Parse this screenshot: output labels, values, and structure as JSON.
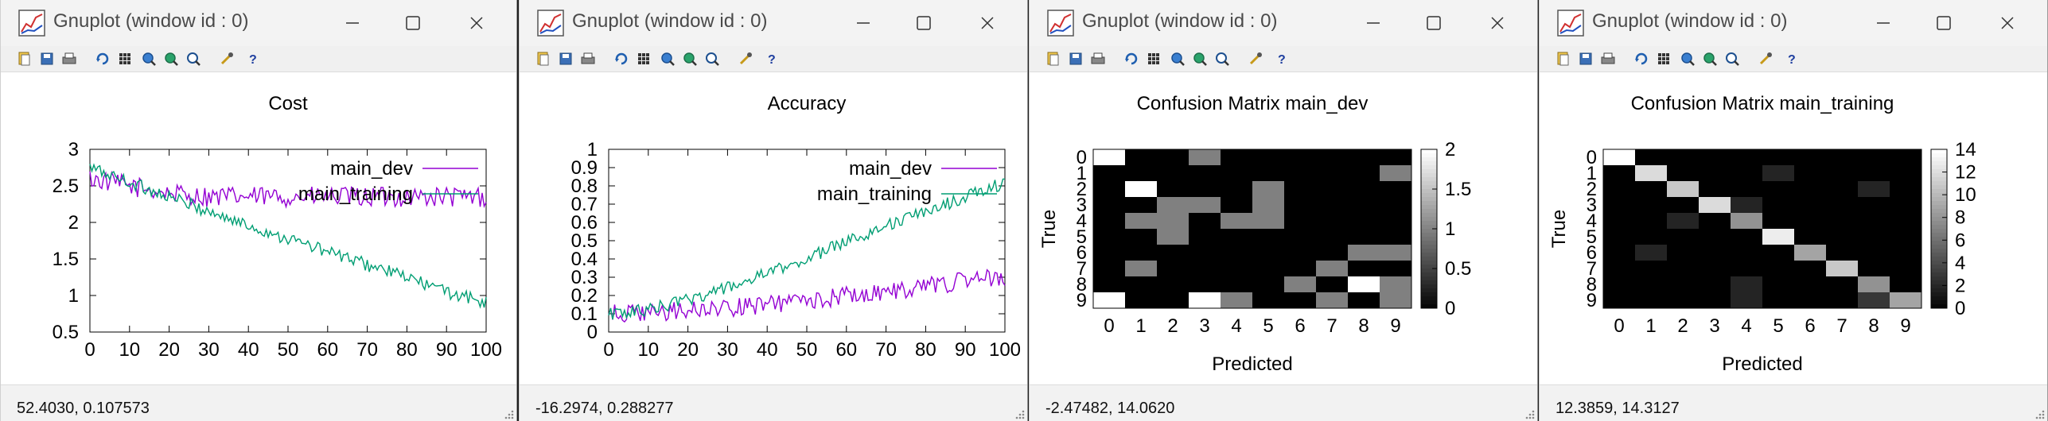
{
  "windows": [
    {
      "title": "Gnuplot (window id : 0)",
      "status": "52.4030,  0.107573"
    },
    {
      "title": "Gnuplot (window id : 0)",
      "status": "-16.2974,  0.288277"
    },
    {
      "title": "Gnuplot (window id : 0)",
      "status": "-2.47482,  14.0620"
    },
    {
      "title": "Gnuplot (window id : 0)",
      "status": "12.3859,  14.3127"
    }
  ],
  "toolbar_icons": [
    "copy-icon",
    "save-icon",
    "print-icon",
    "replot-icon",
    "grid-icon",
    "zoom-prev-icon",
    "zoom-next-icon",
    "autoscale-icon",
    "options-icon",
    "help-icon"
  ],
  "colors": {
    "main_dev": "#9400d3",
    "main_training": "#009e73",
    "titlebar": "#f3f3f3"
  },
  "chart_data": [
    {
      "type": "line",
      "title": "Cost",
      "xlabel": "",
      "ylabel": "",
      "xlim": [
        0,
        100
      ],
      "ylim": [
        0.5,
        3
      ],
      "xticks": [
        "0",
        "10",
        "20",
        "30",
        "40",
        "50",
        "60",
        "70",
        "80",
        "90",
        "100"
      ],
      "yticks": [
        "0.5",
        "1",
        "1.5",
        "2",
        "2.5",
        "3"
      ],
      "legend_position": "top-right",
      "series": [
        {
          "name": "main_dev",
          "x": [
            0,
            10,
            20,
            30,
            40,
            50,
            60,
            70,
            80,
            90,
            100
          ],
          "values": [
            2.6,
            2.5,
            2.4,
            2.35,
            2.35,
            2.35,
            2.35,
            2.35,
            2.35,
            2.35,
            2.35
          ]
        },
        {
          "name": "main_training",
          "x": [
            0,
            10,
            20,
            30,
            40,
            50,
            60,
            70,
            80,
            90,
            100
          ],
          "values": [
            2.75,
            2.55,
            2.35,
            2.15,
            1.95,
            1.78,
            1.6,
            1.42,
            1.25,
            1.05,
            0.9
          ]
        }
      ]
    },
    {
      "type": "line",
      "title": "Accuracy",
      "xlabel": "",
      "ylabel": "",
      "xlim": [
        0,
        100
      ],
      "ylim": [
        0,
        1
      ],
      "xticks": [
        "0",
        "10",
        "20",
        "30",
        "40",
        "50",
        "60",
        "70",
        "80",
        "90",
        "100"
      ],
      "yticks": [
        "0",
        "0.1",
        "0.2",
        "0.3",
        "0.4",
        "0.5",
        "0.6",
        "0.7",
        "0.8",
        "0.9",
        "1"
      ],
      "legend_position": "top-right",
      "series": [
        {
          "name": "main_dev",
          "x": [
            0,
            10,
            20,
            30,
            40,
            50,
            60,
            70,
            80,
            90,
            100
          ],
          "values": [
            0.1,
            0.1,
            0.12,
            0.13,
            0.15,
            0.17,
            0.2,
            0.22,
            0.25,
            0.28,
            0.3
          ]
        },
        {
          "name": "main_training",
          "x": [
            0,
            10,
            20,
            30,
            40,
            50,
            60,
            70,
            80,
            90,
            100
          ],
          "values": [
            0.1,
            0.12,
            0.18,
            0.24,
            0.32,
            0.4,
            0.5,
            0.58,
            0.66,
            0.74,
            0.82
          ]
        }
      ]
    },
    {
      "type": "heatmap",
      "title": "Confusion Matrix main_dev",
      "xlabel": "Predicted",
      "ylabel": "True",
      "x_labels": [
        "0",
        "1",
        "2",
        "3",
        "4",
        "5",
        "6",
        "7",
        "8",
        "9"
      ],
      "y_labels": [
        "0",
        "1",
        "2",
        "3",
        "4",
        "5",
        "6",
        "7",
        "8",
        "9"
      ],
      "colorbar_ticks": [
        "0",
        "0.5",
        "1",
        "1.5",
        "2"
      ],
      "zlim": [
        0,
        2
      ],
      "matrix": [
        [
          2,
          0,
          0,
          1,
          0,
          0,
          0,
          0,
          0,
          0
        ],
        [
          0,
          0,
          0,
          0,
          0,
          0,
          0,
          0,
          0,
          1
        ],
        [
          0,
          2,
          0,
          0,
          0,
          1,
          0,
          0,
          0,
          0
        ],
        [
          0,
          0,
          1,
          1,
          0,
          1,
          0,
          0,
          0,
          0
        ],
        [
          0,
          1,
          1,
          0,
          1,
          1,
          0,
          0,
          0,
          0
        ],
        [
          0,
          0,
          1,
          0,
          0,
          0,
          0,
          0,
          0,
          0
        ],
        [
          0,
          0,
          0,
          0,
          0,
          0,
          0,
          0,
          1,
          1
        ],
        [
          0,
          1,
          0,
          0,
          0,
          0,
          0,
          1,
          0,
          0
        ],
        [
          0,
          0,
          0,
          0,
          0,
          0,
          1,
          0,
          2,
          1
        ],
        [
          2,
          0,
          0,
          2,
          1,
          0,
          0,
          1,
          0,
          1
        ]
      ]
    },
    {
      "type": "heatmap",
      "title": "Confusion Matrix main_training",
      "xlabel": "Predicted",
      "ylabel": "True",
      "x_labels": [
        "0",
        "1",
        "2",
        "3",
        "4",
        "5",
        "6",
        "7",
        "8",
        "9"
      ],
      "y_labels": [
        "0",
        "1",
        "2",
        "3",
        "4",
        "5",
        "6",
        "7",
        "8",
        "9"
      ],
      "colorbar_ticks": [
        "0",
        "2",
        "4",
        "6",
        "8",
        "10",
        "12",
        "14"
      ],
      "zlim": [
        0,
        14
      ],
      "matrix": [
        [
          14,
          0,
          0,
          0,
          0,
          0,
          0,
          0,
          0,
          0
        ],
        [
          0,
          12,
          0,
          0,
          0,
          2,
          0,
          0,
          0,
          0
        ],
        [
          0,
          0,
          11,
          0,
          0,
          0,
          0,
          0,
          2,
          0
        ],
        [
          0,
          0,
          0,
          12,
          2,
          0,
          0,
          0,
          0,
          0
        ],
        [
          0,
          0,
          2,
          0,
          8,
          0,
          0,
          0,
          0,
          0
        ],
        [
          0,
          0,
          0,
          0,
          0,
          13,
          0,
          0,
          0,
          0
        ],
        [
          0,
          2,
          0,
          0,
          0,
          0,
          9,
          0,
          0,
          0
        ],
        [
          0,
          0,
          0,
          0,
          0,
          0,
          0,
          11,
          0,
          0
        ],
        [
          0,
          0,
          0,
          0,
          2,
          0,
          0,
          0,
          8,
          0
        ],
        [
          0,
          0,
          0,
          0,
          2,
          0,
          0,
          0,
          3,
          9
        ]
      ]
    }
  ]
}
